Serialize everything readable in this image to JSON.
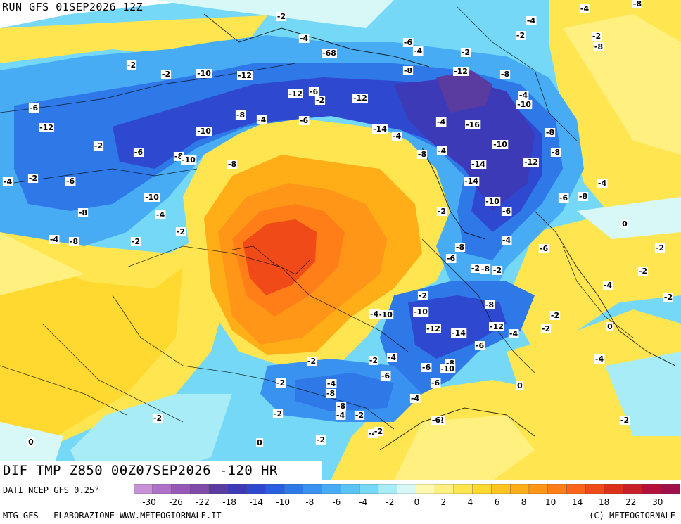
{
  "header": {
    "run_label": "RUN GFS 01SEP2026 12Z"
  },
  "panel": {
    "title": "DIF TMP Z850 00Z07SEP2026 -120 HR"
  },
  "footer": {
    "source": "DATI NCEP GFS 0.25°",
    "credit_left": "MTG-GFS - ELABORAZIONE WWW.METEOGIORNALE.IT",
    "credit_right": "(C) METEOGIORNALE"
  },
  "legend": {
    "colors": [
      "#c890d8",
      "#b070c8",
      "#9858b8",
      "#804aa8",
      "#5a3ca0",
      "#3d3ab8",
      "#2e48d0",
      "#2a5ee0",
      "#2f78e8",
      "#3a92f0",
      "#48acf4",
      "#58c4f6",
      "#74d8f6",
      "#a8ecf8",
      "#d8f8f8",
      "#fff8b0",
      "#fff080",
      "#ffe650",
      "#ffd830",
      "#ffc420",
      "#ffae18",
      "#ff9618",
      "#ff7e18",
      "#ff6418",
      "#f04a18",
      "#dc3018",
      "#c81e28",
      "#b4103a",
      "#a0104a"
    ],
    "tick_labels": [
      "-30",
      "-26",
      "-22",
      "-18",
      "-14",
      "-10",
      "-8",
      "-6",
      "-4",
      "-2",
      "0",
      "2",
      "4",
      "6",
      "8",
      "10",
      "14",
      "18",
      "22",
      "30"
    ]
  },
  "contour_labels": [
    "-2",
    "-4",
    "-8",
    "-4",
    "-2",
    "-4",
    "-6",
    "-4",
    "-2",
    "-2",
    "-8",
    "-68",
    "-2",
    "-2",
    "-8",
    "-10",
    "-12",
    "-12",
    "-8",
    "-4",
    "-6",
    "-12",
    "-6",
    "-2",
    "-12",
    "-10",
    "-8",
    "-4",
    "-6",
    "-4",
    "-16",
    "-14",
    "-10",
    "-4",
    "-8",
    "-2",
    "-6",
    "-8",
    "-10",
    "-8",
    "-4",
    "-8",
    "-10",
    "-12",
    "-14",
    "-8",
    "-12",
    "-14",
    "-4",
    "-2",
    "-6",
    "-10",
    "-6",
    "-8",
    "-10",
    "-2",
    "-6",
    "-8",
    "-4",
    "-2",
    "-4",
    "-8",
    "-2",
    "-4",
    "-8",
    "-6",
    "-6",
    "-2",
    "-8",
    "-2",
    "-10",
    "-10",
    "-8",
    "-2",
    "-4",
    "-12",
    "-14",
    "-12",
    "-4",
    "0",
    "-2",
    "-2",
    "-2",
    "-4",
    "-6",
    "-4",
    "-8",
    "-6",
    "-8",
    "-10",
    "-6",
    "-4",
    "-2",
    "-8",
    "-6",
    "-4",
    "-2",
    "-2",
    "-6",
    "-4",
    "-2",
    "0",
    "-2",
    "-2",
    "-2",
    "0",
    "-2",
    "-4",
    "-4",
    "-2",
    "0",
    "-2",
    "0",
    "-2",
    "-2",
    "-4"
  ]
}
